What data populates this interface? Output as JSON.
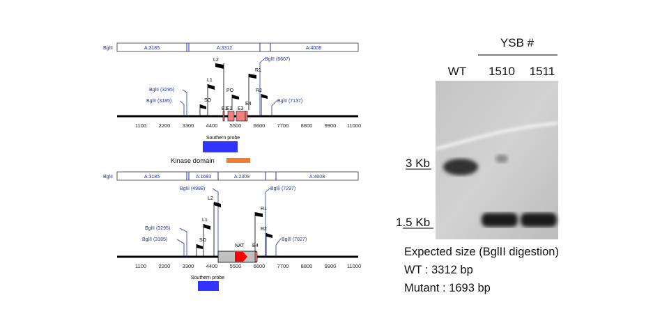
{
  "top_map": {
    "enzyme_label": "BglII",
    "fragments": [
      "A:3185",
      "A:3312",
      "A:4008"
    ],
    "sites": [
      {
        "label": "BglII (3295)"
      },
      {
        "label": "BglII (3185)"
      },
      {
        "label": "BglII (6607)"
      },
      {
        "label": "BglII (7137)"
      }
    ],
    "primers": [
      "L2",
      "L1",
      "SO",
      "PO",
      "R1",
      "R2"
    ],
    "exons": [
      "E1",
      "E2",
      "E3",
      "E4"
    ],
    "ticks": [
      "1100",
      "2200",
      "3300",
      "4400",
      "5500",
      "6600",
      "7700",
      "8800",
      "9900",
      "11000"
    ],
    "probe_label": "Southern probe",
    "kinase_label": "Kinase domain",
    "probe_color": "#3333ff",
    "kinase_color": "#ed7d31",
    "exon_color": "#f08080"
  },
  "bottom_map": {
    "enzyme_label": "BglII",
    "fragments": [
      "A:3185",
      "A:1693",
      "A:2309",
      "A:4008"
    ],
    "sites": [
      {
        "label": "BglII (4988)"
      },
      {
        "label": "BglII (7297)"
      },
      {
        "label": "BglII (3295)"
      },
      {
        "label": "BglII (3185)"
      },
      {
        "label": "BglII (7827)"
      }
    ],
    "primers": [
      "L2",
      "L1",
      "SO",
      "R1",
      "R2"
    ],
    "marker_label": "NAT",
    "exon_label": "E4",
    "ticks": [
      "1100",
      "2200",
      "3300",
      "4400",
      "5500",
      "6600",
      "7700",
      "8800",
      "9900",
      "11000"
    ],
    "probe_label": "Southern probe",
    "nat_color": "#ff0000",
    "cassette_color": "#c0c0c0"
  },
  "gel": {
    "group_label": "YSB #",
    "lanes": [
      "WT",
      "1510",
      "1511"
    ],
    "markers": [
      "3 Kb",
      "1.5 Kb"
    ]
  },
  "notes": {
    "line1": "Expected size (BglII digestion)",
    "line2": "WT : 3312 bp",
    "line3": "Mutant : 1693 bp"
  }
}
